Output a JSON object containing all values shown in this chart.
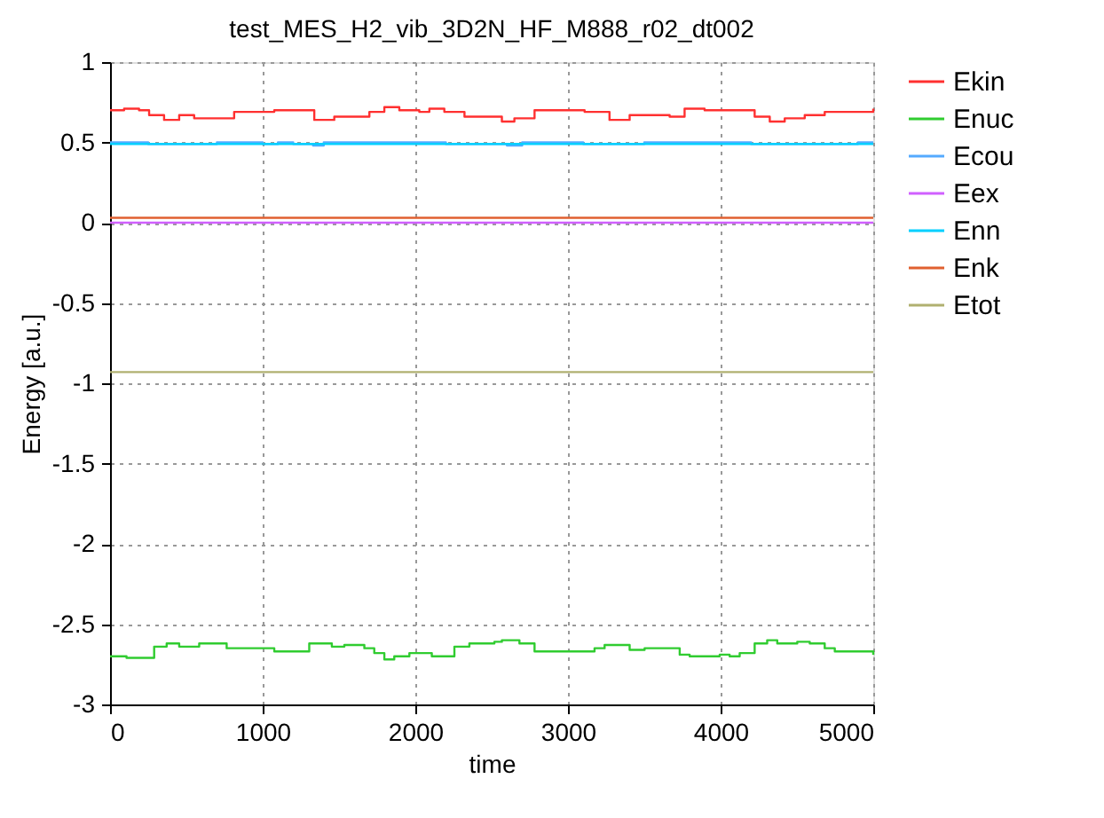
{
  "chart_data": {
    "type": "step",
    "title": "test_MES_H2_vib_3D2N_HF_M888_r02_dt002",
    "xlabel": "time",
    "ylabel": "Energy [a.u.]",
    "xlim": [
      0,
      5000
    ],
    "xticks": [
      0,
      1000,
      2000,
      3000,
      4000,
      5000
    ],
    "ylim": [
      -3,
      1
    ],
    "yticks": [
      -3,
      -2.5,
      -2,
      -1.5,
      -1,
      -0.5,
      0,
      0.5,
      1
    ],
    "grid": true,
    "legend": "right",
    "line_style": "solid",
    "marker": "none",
    "series": [
      {
        "name": "Ekin",
        "color": "#ff3030",
        "x": [
          0,
          92,
          190,
          256,
          354,
          453,
          551,
          682,
          813,
          944,
          1076,
          1174,
          1338,
          1403,
          1469,
          1600,
          1699,
          1797,
          1895,
          2026,
          2092,
          2190,
          2322,
          2518,
          2567,
          2649,
          2781,
          3010,
          3109,
          3272,
          3404,
          3535,
          3666,
          3764,
          3895,
          4092,
          4223,
          4322,
          4420,
          4551,
          4682,
          4978,
          5000
        ],
        "values": [
          0.7,
          0.71,
          0.7,
          0.67,
          0.64,
          0.67,
          0.65,
          0.65,
          0.69,
          0.69,
          0.7,
          0.7,
          0.64,
          0.64,
          0.66,
          0.66,
          0.69,
          0.72,
          0.7,
          0.69,
          0.71,
          0.69,
          0.66,
          0.66,
          0.63,
          0.65,
          0.7,
          0.7,
          0.69,
          0.64,
          0.67,
          0.67,
          0.66,
          0.71,
          0.7,
          0.7,
          0.66,
          0.63,
          0.65,
          0.67,
          0.69,
          0.69,
          0.71
        ]
      },
      {
        "name": "Enuc",
        "color": "#30cc30",
        "x": [
          0,
          108,
          157,
          289,
          371,
          453,
          551,
          584,
          666,
          764,
          1010,
          1076,
          1174,
          1305,
          1403,
          1453,
          1502,
          1535,
          1584,
          1666,
          1731,
          1797,
          1862,
          1961,
          2043,
          2108,
          2158,
          2256,
          2354,
          2404,
          2453,
          2518,
          2567,
          2600,
          2682,
          2781,
          2945,
          3010,
          3109,
          3174,
          3240,
          3338,
          3404,
          3469,
          3502,
          3633,
          3732,
          3797,
          3994,
          4059,
          4125,
          4223,
          4305,
          4371,
          4436,
          4502,
          4584,
          4682,
          4748,
          4945,
          5000
        ],
        "values": [
          -2.7,
          -2.71,
          -2.71,
          -2.64,
          -2.62,
          -2.64,
          -2.64,
          -2.62,
          -2.62,
          -2.65,
          -2.65,
          -2.67,
          -2.67,
          -2.62,
          -2.62,
          -2.64,
          -2.64,
          -2.63,
          -2.63,
          -2.65,
          -2.68,
          -2.72,
          -2.7,
          -2.68,
          -2.68,
          -2.7,
          -2.7,
          -2.64,
          -2.62,
          -2.62,
          -2.62,
          -2.61,
          -2.6,
          -2.6,
          -2.62,
          -2.67,
          -2.67,
          -2.67,
          -2.67,
          -2.65,
          -2.63,
          -2.63,
          -2.66,
          -2.66,
          -2.65,
          -2.65,
          -2.69,
          -2.7,
          -2.69,
          -2.7,
          -2.68,
          -2.62,
          -2.6,
          -2.62,
          -2.62,
          -2.61,
          -2.62,
          -2.65,
          -2.67,
          -2.67,
          -2.69
        ]
      },
      {
        "name": "Ecou",
        "color": "#55aaff",
        "x": [
          0,
          250,
          650,
          700,
          1000,
          1100,
          1200,
          1330,
          1400,
          1700,
          2000,
          2200,
          2600,
          2700,
          3000,
          3100,
          3400,
          3500,
          4000,
          4200,
          4700,
          4900,
          5000
        ],
        "values": [
          0.5,
          0.49,
          0.49,
          0.5,
          0.49,
          0.5,
          0.49,
          0.48,
          0.5,
          0.5,
          0.5,
          0.49,
          0.48,
          0.5,
          0.5,
          0.49,
          0.49,
          0.5,
          0.5,
          0.49,
          0.49,
          0.5,
          0.5
        ]
      },
      {
        "name": "Eex",
        "color": "#d060ff",
        "x": [
          0,
          5000
        ],
        "values": [
          0.0,
          0.0
        ]
      },
      {
        "name": "Enn",
        "color": "#00d0ff",
        "x": [
          0,
          5000
        ],
        "values": [
          0.49,
          0.49
        ]
      },
      {
        "name": "Enk",
        "color": "#e06030",
        "x": [
          0,
          5000
        ],
        "values": [
          0.03,
          0.03
        ]
      },
      {
        "name": "Etot",
        "color": "#b0b070",
        "x": [
          0,
          5000
        ],
        "values": [
          -0.93,
          -0.93
        ]
      }
    ]
  }
}
